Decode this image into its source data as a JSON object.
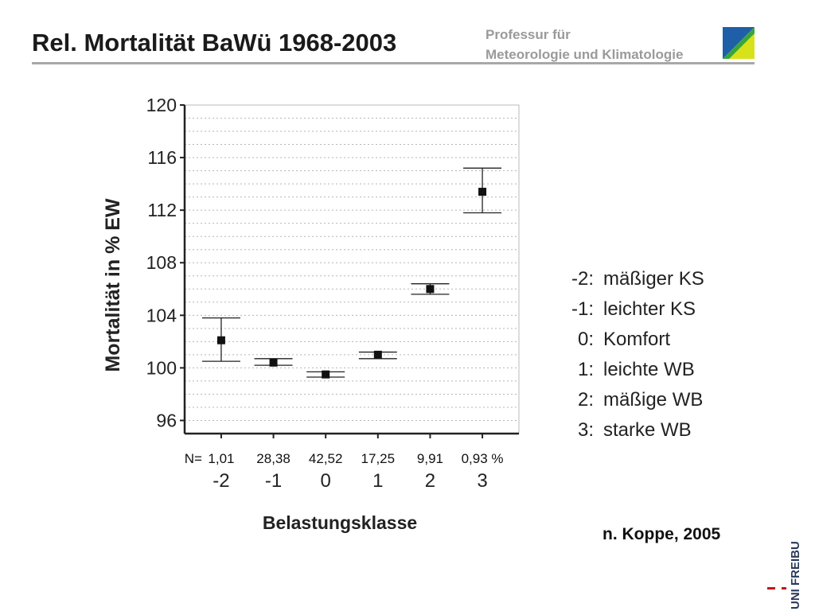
{
  "header": {
    "title": "Rel. Mortalität BaWü 1968-2003",
    "institution_line1": "Professur für",
    "institution_line2": "Meteorologie und Klimatologie",
    "logo_colors": [
      "#1f5fa8",
      "#3aa63a",
      "#d8e21a"
    ]
  },
  "chart_data": {
    "type": "scatter",
    "title": "",
    "xlabel": "Belastungsklasse",
    "ylabel": "Mortalität in % EW",
    "ylim": [
      95,
      120
    ],
    "yticks": [
      96,
      100,
      104,
      108,
      112,
      116,
      120
    ],
    "xlim": [
      -2.7,
      3.7
    ],
    "categories": [
      "-2",
      "-1",
      "0",
      "1",
      "2",
      "3"
    ],
    "x": [
      -2,
      -1,
      0,
      1,
      2,
      3
    ],
    "values": [
      102.1,
      100.4,
      99.5,
      101.0,
      106.0,
      113.4
    ],
    "error_low": [
      100.5,
      100.2,
      99.3,
      100.7,
      105.6,
      111.8
    ],
    "error_high": [
      103.8,
      100.7,
      99.7,
      101.2,
      106.4,
      115.2
    ],
    "n_prefix": "N=",
    "n_labels": [
      "1,01",
      "28,38",
      "42,52",
      "17,25",
      "9,91",
      "0,93 %"
    ],
    "grid": true,
    "legend": "right"
  },
  "legend": {
    "items": [
      {
        "code": "-2:",
        "label": "mäßiger KS"
      },
      {
        "code": "-1:",
        "label": "leichter KS"
      },
      {
        "code": "0:",
        "label": "Komfort"
      },
      {
        "code": "1:",
        "label": "leichte WB"
      },
      {
        "code": "2:",
        "label": "mäßige WB"
      },
      {
        "code": "3:",
        "label": "starke WB"
      }
    ]
  },
  "source": "n. Koppe, 2005",
  "university_logo": "UNI FREIBURG"
}
